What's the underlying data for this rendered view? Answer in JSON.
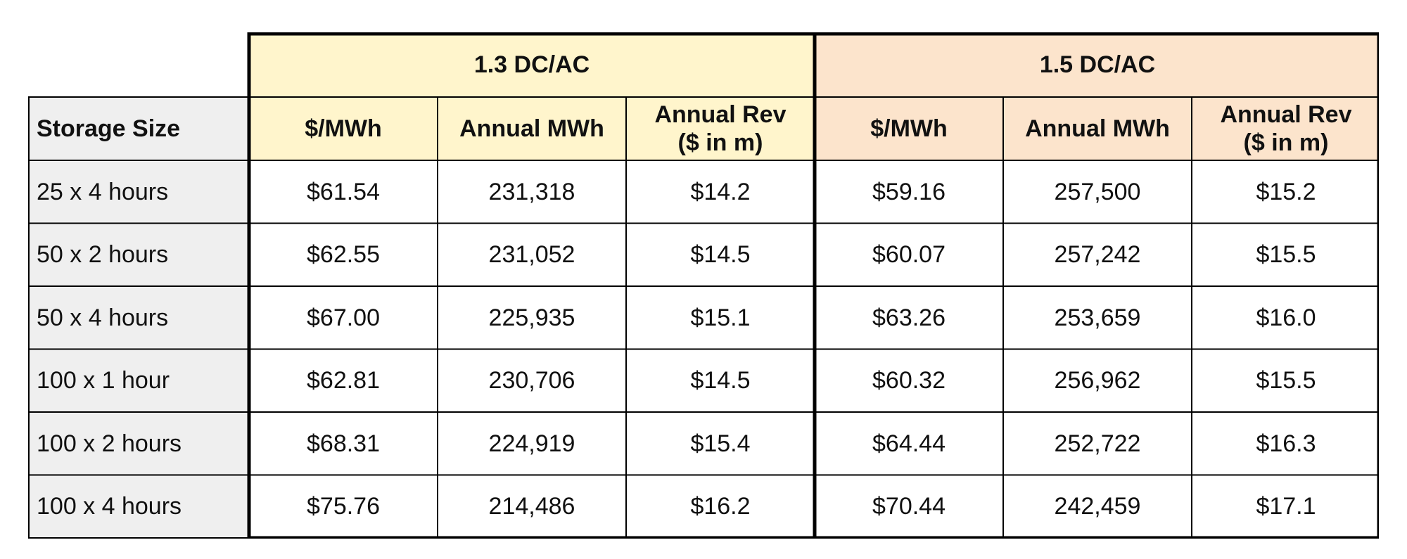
{
  "groups": [
    {
      "label": "1.3 DC/AC",
      "color": "#FFF5CC"
    },
    {
      "label": "1.5 DC/AC",
      "color": "#FCE4CC"
    }
  ],
  "row_header_label": "Storage Size",
  "row_header_color": "#EFEFEF",
  "columns": [
    {
      "label_line1": "$/MWh",
      "label_line2": ""
    },
    {
      "label_line1": "Annual MWh",
      "label_line2": ""
    },
    {
      "label_line1": "Annual Rev",
      "label_line2": "($ in m)"
    },
    {
      "label_line1": "$/MWh",
      "label_line2": ""
    },
    {
      "label_line1": "Annual MWh",
      "label_line2": ""
    },
    {
      "label_line1": "Annual Rev",
      "label_line2": "($ in m)"
    }
  ],
  "rows": [
    {
      "size": "25 x 4 hours",
      "values": [
        "$61.54",
        "231,318",
        "$14.2",
        "$59.16",
        "257,500",
        "$15.2"
      ]
    },
    {
      "size": "50 x 2 hours",
      "values": [
        "$62.55",
        "231,052",
        "$14.5",
        "$60.07",
        "257,242",
        "$15.5"
      ]
    },
    {
      "size": "50 x 4 hours",
      "values": [
        "$67.00",
        "225,935",
        "$15.1",
        "$63.26",
        "253,659",
        "$16.0"
      ]
    },
    {
      "size": "100 x 1 hour",
      "values": [
        "$62.81",
        "230,706",
        "$14.5",
        "$60.32",
        "256,962",
        "$15.5"
      ]
    },
    {
      "size": "100 x 2 hours",
      "values": [
        "$68.31",
        "224,919",
        "$15.4",
        "$64.44",
        "252,722",
        "$16.3"
      ]
    },
    {
      "size": "100 x 4 hours",
      "values": [
        "$75.76",
        "214,486",
        "$16.2",
        "$70.44",
        "242,459",
        "$17.1"
      ]
    }
  ]
}
